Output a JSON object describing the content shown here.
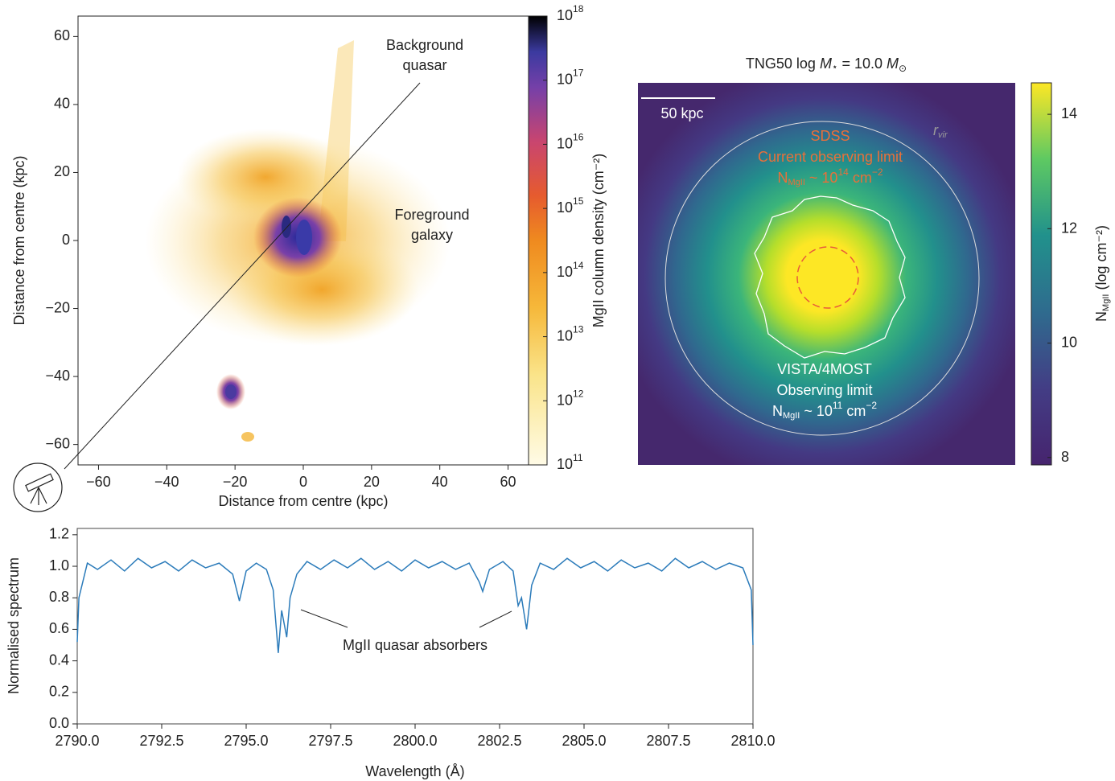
{
  "chart_data": [
    {
      "type": "heatmap",
      "xlabel": "Distance from centre (kpc)",
      "ylabel": "Distance from centre (kpc)",
      "xlim": [
        -66,
        66
      ],
      "ylim": [
        -66,
        66
      ],
      "xticks": [
        {
          "value": -60,
          "label": "−60"
        },
        {
          "value": -40,
          "label": "−40"
        },
        {
          "value": -20,
          "label": "−20"
        },
        0,
        20,
        40,
        60
      ],
      "yticks": [
        {
          "value": -60,
          "label": "−60"
        },
        {
          "value": -40,
          "label": "−40"
        },
        {
          "value": -20,
          "label": "−20"
        },
        0,
        20,
        40,
        60
      ],
      "colorbar": {
        "label": "MgII column density (cm⁻²)",
        "log": true,
        "lim": [
          100000000000.0,
          1e+18
        ],
        "ticks": [
          {
            "value": 100000000000.0,
            "label": "10",
            "exponent": "11"
          },
          {
            "value": 1000000000000.0,
            "label": "10",
            "exponent": "12"
          },
          {
            "value": 10000000000000.0,
            "label": "10",
            "exponent": "13"
          },
          {
            "value": 100000000000000.0,
            "label": "10",
            "exponent": "14"
          },
          {
            "value": 1000000000000000.0,
            "label": "10",
            "exponent": "15"
          },
          {
            "value": 1e+16,
            "label": "10",
            "exponent": "16"
          },
          {
            "value": 1e+17,
            "label": "10",
            "exponent": "17"
          },
          {
            "value": 1e+18,
            "label": "10",
            "exponent": "18"
          }
        ]
      },
      "annotations": [
        [
          "Background",
          "quasar"
        ],
        [
          "Foreground",
          "galaxy"
        ]
      ]
    },
    {
      "type": "heatmap",
      "title": [
        "TNG50 log ",
        "M",
        "⋆",
        " = 10.0 ",
        "M",
        "⊙"
      ],
      "colorbar": {
        "label": [
          "N",
          "MgII",
          " (log cm⁻²)"
        ],
        "lim": [
          7.87,
          14.55
        ],
        "ticks": [
          8,
          10,
          12,
          14
        ]
      },
      "scale_bar": "50 kpc",
      "radius_label": [
        "r",
        "vir"
      ],
      "annotations": [
        {
          "lines": [
            "SDSS",
            "Current observing limit"
          ],
          "density": [
            "N",
            "MgII",
            " ~ 10",
            "14",
            " cm",
            "−2"
          ]
        },
        {
          "lines": [
            "VISTA/4MOST",
            "Observing limit"
          ],
          "density": [
            "N",
            "MgII",
            " ~ 10",
            "11",
            " cm",
            "−2"
          ]
        }
      ]
    },
    {
      "type": "line",
      "xlabel": "Wavelength (Å)",
      "ylabel": "Normalised spectrum",
      "xlim": [
        2790,
        2810
      ],
      "ylim": [
        0,
        1.24
      ],
      "xticks": [
        {
          "value": 2790,
          "label": "2790.0"
        },
        {
          "value": 2792.5,
          "label": "2792.5"
        },
        {
          "value": 2795,
          "label": "2795.0"
        },
        {
          "value": 2797.5,
          "label": "2797.5"
        },
        {
          "value": 2800,
          "label": "2800.0"
        },
        {
          "value": 2802.5,
          "label": "2802.5"
        },
        {
          "value": 2805,
          "label": "2805.0"
        },
        {
          "value": 2807.5,
          "label": "2807.5"
        },
        {
          "value": 2810,
          "label": "2810.0"
        }
      ],
      "yticks": [
        {
          "value": 0,
          "label": "0.0"
        },
        0.2,
        0.4,
        0.6,
        0.8,
        {
          "value": 1,
          "label": "1.0"
        },
        1.2
      ],
      "x": [
        2790.0,
        2790.05,
        2790.3,
        2790.6,
        2791.0,
        2791.4,
        2791.8,
        2792.2,
        2792.6,
        2793.0,
        2793.4,
        2793.8,
        2794.2,
        2794.6,
        2794.8,
        2795.0,
        2795.3,
        2795.6,
        2795.8,
        2795.95,
        2796.05,
        2796.2,
        2796.3,
        2796.5,
        2796.8,
        2797.2,
        2797.6,
        2798.0,
        2798.4,
        2798.8,
        2799.2,
        2799.6,
        2800.0,
        2800.4,
        2800.8,
        2801.2,
        2801.6,
        2801.9,
        2802.0,
        2802.2,
        2802.6,
        2802.9,
        2803.05,
        2803.15,
        2803.3,
        2803.45,
        2803.7,
        2804.1,
        2804.5,
        2804.9,
        2805.3,
        2805.7,
        2806.1,
        2806.5,
        2806.9,
        2807.3,
        2807.7,
        2808.1,
        2808.5,
        2808.9,
        2809.3,
        2809.7,
        2809.95,
        2810.0
      ],
      "series": [
        {
          "color": "#2b7bba",
          "values": [
            0.52,
            0.8,
            1.02,
            0.98,
            1.04,
            0.97,
            1.05,
            0.99,
            1.03,
            0.97,
            1.04,
            0.99,
            1.02,
            0.95,
            0.78,
            0.97,
            1.02,
            0.98,
            0.85,
            0.45,
            0.72,
            0.55,
            0.8,
            0.95,
            1.03,
            0.98,
            1.04,
            0.99,
            1.05,
            0.98,
            1.03,
            0.97,
            1.04,
            0.99,
            1.03,
            0.98,
            1.02,
            0.9,
            0.84,
            0.98,
            1.03,
            0.97,
            0.75,
            0.8,
            0.6,
            0.88,
            1.02,
            0.98,
            1.05,
            0.99,
            1.03,
            0.97,
            1.04,
            0.99,
            1.02,
            0.97,
            1.05,
            0.99,
            1.03,
            0.98,
            1.02,
            0.99,
            0.85,
            0.5
          ]
        }
      ],
      "annotation": "MgII quasar absorbers"
    }
  ]
}
